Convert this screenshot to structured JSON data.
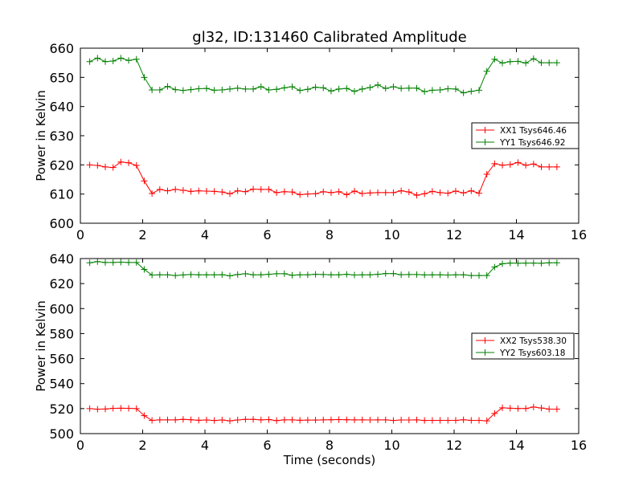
{
  "figure_title": "gl32, ID:131460 Calibrated Amplitude",
  "chart_data": [
    {
      "type": "line",
      "title": "gl32, ID:131460 Calibrated Amplitude",
      "xlabel": "",
      "ylabel": "Power in Kelvin",
      "xlim": [
        0,
        16
      ],
      "ylim": [
        600,
        660
      ],
      "xticks": [
        0,
        2,
        4,
        6,
        8,
        10,
        12,
        14,
        16
      ],
      "yticks": [
        600,
        610,
        620,
        630,
        640,
        650,
        660
      ],
      "grid": false,
      "legend_position": "center-right",
      "x": [
        0.3,
        0.55,
        0.8,
        1.05,
        1.3,
        1.55,
        1.8,
        2.05,
        2.3,
        2.55,
        2.8,
        3.05,
        3.3,
        3.55,
        3.8,
        4.05,
        4.3,
        4.55,
        4.8,
        5.05,
        5.3,
        5.55,
        5.8,
        6.05,
        6.3,
        6.55,
        6.8,
        7.05,
        7.3,
        7.55,
        7.8,
        8.05,
        8.3,
        8.55,
        8.8,
        9.05,
        9.3,
        9.55,
        9.8,
        10.05,
        10.3,
        10.55,
        10.8,
        11.05,
        11.3,
        11.55,
        11.8,
        12.05,
        12.3,
        12.55,
        12.8,
        13.05,
        13.3,
        13.55,
        13.8,
        14.05,
        14.3,
        14.55,
        14.8,
        15.05,
        15.3
      ],
      "series": [
        {
          "name": "XX1 Tsys646.46",
          "color": "#ff0000",
          "values": [
            620.0,
            619.8,
            619.3,
            619.1,
            621.0,
            620.7,
            619.8,
            614.5,
            610.2,
            611.6,
            611.1,
            611.6,
            611.3,
            610.9,
            611.1,
            611.0,
            610.9,
            610.7,
            610.1,
            611.1,
            610.8,
            611.7,
            611.6,
            611.6,
            610.5,
            610.8,
            610.7,
            609.8,
            610.0,
            610.1,
            610.8,
            610.5,
            610.8,
            609.8,
            611.0,
            610.2,
            610.4,
            610.5,
            610.5,
            610.5,
            611.1,
            610.7,
            609.6,
            610.1,
            610.9,
            610.5,
            610.3,
            611.0,
            610.4,
            611.1,
            610.3,
            616.8,
            620.4,
            619.9,
            620.1,
            620.8,
            619.9,
            620.3,
            619.3,
            619.3,
            619.3
          ]
        },
        {
          "name": "YY1 Tsys646.92",
          "color": "#008000",
          "values": [
            655.4,
            656.6,
            655.4,
            655.6,
            656.6,
            655.8,
            656.2,
            650.0,
            645.7,
            645.7,
            646.9,
            645.8,
            645.5,
            645.8,
            646.1,
            646.2,
            645.6,
            645.7,
            646.0,
            646.3,
            646.0,
            646.0,
            646.8,
            645.7,
            645.9,
            646.4,
            646.8,
            645.5,
            645.9,
            646.6,
            646.4,
            645.3,
            646.0,
            646.2,
            645.2,
            646.0,
            646.5,
            647.4,
            646.2,
            646.8,
            646.2,
            646.3,
            646.3,
            645.1,
            645.6,
            645.7,
            646.1,
            646.0,
            644.7,
            645.2,
            645.6,
            652.1,
            656.2,
            654.9,
            655.4,
            655.5,
            654.9,
            656.4,
            655.0,
            655.0,
            655.0
          ]
        }
      ]
    },
    {
      "type": "line",
      "title": "",
      "xlabel": "Time (seconds)",
      "ylabel": "Power in Kelvin",
      "xlim": [
        0,
        16
      ],
      "ylim": [
        500,
        640
      ],
      "xticks": [
        0,
        2,
        4,
        6,
        8,
        10,
        12,
        14,
        16
      ],
      "yticks": [
        500,
        520,
        540,
        560,
        580,
        600,
        620,
        640
      ],
      "grid": false,
      "legend_position": "center-right",
      "x": [
        0.3,
        0.55,
        0.8,
        1.05,
        1.3,
        1.55,
        1.8,
        2.05,
        2.3,
        2.55,
        2.8,
        3.05,
        3.3,
        3.55,
        3.8,
        4.05,
        4.3,
        4.55,
        4.8,
        5.05,
        5.3,
        5.55,
        5.8,
        6.05,
        6.3,
        6.55,
        6.8,
        7.05,
        7.3,
        7.55,
        7.8,
        8.05,
        8.3,
        8.55,
        8.8,
        9.05,
        9.3,
        9.55,
        9.8,
        10.05,
        10.3,
        10.55,
        10.8,
        11.05,
        11.3,
        11.55,
        11.8,
        12.05,
        12.3,
        12.55,
        12.8,
        13.05,
        13.3,
        13.55,
        13.8,
        14.05,
        14.3,
        14.55,
        14.8,
        15.05,
        15.3
      ],
      "series": [
        {
          "name": "XX2 Tsys538.30",
          "color": "#ff0000",
          "values": [
            520.0,
            519.5,
            519.7,
            520.2,
            520.3,
            520.2,
            520.0,
            514.4,
            510.6,
            511.0,
            511.0,
            511.0,
            511.4,
            511.1,
            510.7,
            510.9,
            510.5,
            510.9,
            510.2,
            510.9,
            511.4,
            511.4,
            511.0,
            511.2,
            510.4,
            511.0,
            511.0,
            510.7,
            510.8,
            510.8,
            511.0,
            511.1,
            511.2,
            511.1,
            511.0,
            511.0,
            510.9,
            511.0,
            511.0,
            510.5,
            510.9,
            510.9,
            511.0,
            510.5,
            510.6,
            510.6,
            510.6,
            510.6,
            511.1,
            510.6,
            510.6,
            510.2,
            516.1,
            520.6,
            520.3,
            520.1,
            520.1,
            521.3,
            520.5,
            519.6,
            519.6
          ]
        },
        {
          "name": "YY2 Tsys603.18",
          "color": "#008000",
          "values": [
            636.6,
            637.6,
            636.9,
            636.9,
            637.1,
            636.9,
            636.9,
            631.3,
            626.8,
            627.0,
            627.0,
            626.4,
            626.9,
            627.2,
            627.0,
            627.0,
            627.0,
            627.1,
            626.2,
            627.2,
            627.9,
            627.0,
            627.0,
            627.4,
            627.9,
            627.9,
            626.7,
            627.0,
            627.0,
            627.4,
            627.2,
            627.0,
            627.0,
            627.4,
            626.8,
            627.0,
            627.0,
            627.4,
            628.0,
            628.0,
            627.1,
            627.2,
            627.2,
            626.9,
            627.0,
            627.0,
            626.8,
            627.0,
            627.0,
            626.4,
            626.4,
            626.4,
            633.2,
            635.8,
            636.4,
            636.2,
            636.4,
            636.4,
            636.2,
            636.6,
            636.6
          ]
        }
      ]
    }
  ]
}
